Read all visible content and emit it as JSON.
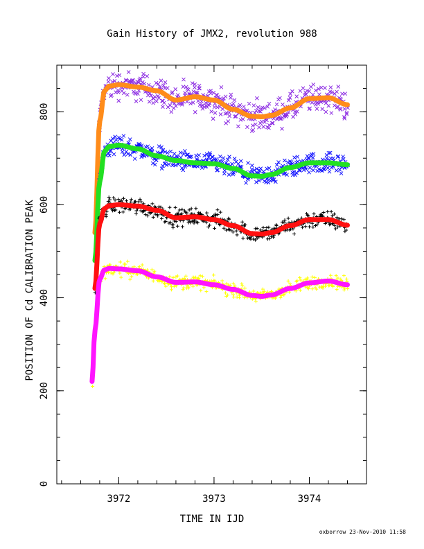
{
  "chart_data": {
    "type": "scatter",
    "title": "Gain History of JMX2, revolution 988",
    "xlabel": "TIME IN IJD",
    "ylabel": "POSITION OF Cd CALIBRATION PEAK",
    "xlim": [
      3971.35,
      3974.6
    ],
    "ylim": [
      0,
      900
    ],
    "xticks": [
      3972,
      3973,
      3974
    ],
    "xtick_labels": [
      "3972",
      "3973",
      "3974"
    ],
    "yticks": [
      0,
      200,
      400,
      600,
      800
    ],
    "ytick_labels": [
      "0",
      "200",
      "400",
      "600",
      "800"
    ],
    "grid": false,
    "legend": "none",
    "series": [
      {
        "color_points": "#8b2be2",
        "marker": "x",
        "color_fit": "#ff8c1a",
        "x": [
          3971.75,
          3971.8,
          3971.85,
          3971.9,
          3972.0,
          3972.2,
          3972.4,
          3972.6,
          3972.8,
          3973.0,
          3973.2,
          3973.4,
          3973.5,
          3973.6,
          3973.8,
          3974.0,
          3974.2,
          3974.4
        ],
        "y": [
          540,
          780,
          845,
          855,
          858,
          853,
          845,
          825,
          832,
          825,
          805,
          790,
          789,
          792,
          808,
          828,
          830,
          815
        ]
      },
      {
        "color_points": "#1414ff",
        "marker": "x",
        "color_fit": "#22e022",
        "x": [
          3971.75,
          3971.8,
          3971.85,
          3971.9,
          3972.0,
          3972.2,
          3972.4,
          3972.6,
          3972.8,
          3973.0,
          3973.2,
          3973.4,
          3973.5,
          3973.6,
          3973.8,
          3974.0,
          3974.2,
          3974.4
        ],
        "y": [
          480,
          650,
          715,
          725,
          728,
          720,
          705,
          695,
          690,
          688,
          678,
          662,
          661,
          665,
          680,
          690,
          690,
          686
        ]
      },
      {
        "color_points": "#000000",
        "marker": "+",
        "color_fit": "#ff1010",
        "x": [
          3971.75,
          3971.8,
          3971.85,
          3971.9,
          3972.0,
          3972.2,
          3972.4,
          3972.6,
          3972.8,
          3973.0,
          3973.2,
          3973.4,
          3973.5,
          3973.6,
          3973.8,
          3974.0,
          3974.2,
          3974.4
        ],
        "y": [
          420,
          560,
          592,
          598,
          600,
          597,
          588,
          572,
          574,
          568,
          555,
          538,
          537,
          540,
          555,
          568,
          568,
          556
        ]
      },
      {
        "color_points": "#ffff00",
        "marker": "+",
        "color_fit": "#ff14ff",
        "x": [
          3971.72,
          3971.75,
          3971.8,
          3971.85,
          3971.9,
          3972.0,
          3972.2,
          3972.4,
          3972.6,
          3972.8,
          3973.0,
          3973.2,
          3973.4,
          3973.5,
          3973.6,
          3973.8,
          3974.0,
          3974.2,
          3974.4
        ],
        "y": [
          220,
          330,
          440,
          460,
          463,
          462,
          458,
          445,
          433,
          434,
          428,
          418,
          405,
          403,
          406,
          420,
          432,
          436,
          428
        ]
      }
    ]
  },
  "footer": {
    "credit": "oxborrow 23-Nov-2010 11:58"
  }
}
